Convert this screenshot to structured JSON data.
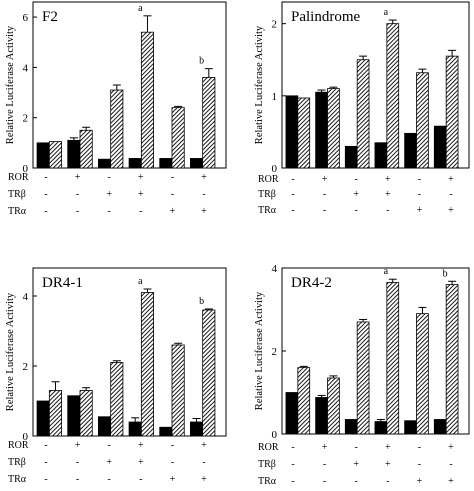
{
  "chart_data": [
    {
      "type": "bar",
      "title": "F2",
      "ylabel": "Relative Luciferase Activity",
      "ylim": [
        0,
        6.6
      ],
      "y_ticks": [
        "0",
        "2",
        "4",
        "6"
      ],
      "y_tick_values": [
        0,
        2,
        4,
        6
      ],
      "series": [
        {
          "fill": "solid",
          "values": [
            1.0,
            1.1,
            0.35,
            0.38,
            0.38,
            0.38
          ],
          "errors": [
            0.0,
            0.1,
            0.0,
            0.0,
            0.0,
            0.0
          ]
        },
        {
          "fill": "hatched",
          "values": [
            1.05,
            1.5,
            3.1,
            5.4,
            2.4,
            3.6
          ],
          "errors": [
            0.0,
            0.12,
            0.2,
            0.65,
            0.05,
            0.35
          ]
        }
      ],
      "annotations": [
        {
          "group": 3,
          "text": "a"
        },
        {
          "group": 5,
          "text": "b"
        }
      ],
      "conditions": [
        {
          "label": "ROR",
          "marks": [
            "-",
            "+",
            "-",
            "+",
            "-",
            "+"
          ]
        },
        {
          "label": "TRβ",
          "marks": [
            "-",
            "-",
            "+",
            "+",
            "-",
            "-"
          ]
        },
        {
          "label": "TRα",
          "marks": [
            "-",
            "-",
            "-",
            "-",
            "+",
            "+"
          ]
        }
      ]
    },
    {
      "type": "bar",
      "title": "Palindrome",
      "ylabel": "Relative Luciferase Activity",
      "ylim": [
        0,
        2.3
      ],
      "y_ticks": [
        "0",
        "1",
        "2"
      ],
      "y_tick_values": [
        0,
        1,
        2
      ],
      "series": [
        {
          "fill": "solid",
          "values": [
            1.0,
            1.05,
            0.3,
            0.35,
            0.48,
            0.58
          ],
          "errors": [
            0.0,
            0.03,
            0.0,
            0.0,
            0.0,
            0.0
          ]
        },
        {
          "fill": "hatched",
          "values": [
            0.97,
            1.1,
            1.5,
            2.0,
            1.32,
            1.55
          ],
          "errors": [
            0.0,
            0.02,
            0.05,
            0.05,
            0.05,
            0.08
          ]
        }
      ],
      "annotations": [
        {
          "group": 3,
          "text": "a"
        }
      ],
      "conditions": [
        {
          "label": "ROR",
          "marks": [
            "-",
            "+",
            "-",
            "+",
            "-",
            "+"
          ]
        },
        {
          "label": "TRβ",
          "marks": [
            "-",
            "-",
            "+",
            "+",
            "-",
            "-"
          ]
        },
        {
          "label": "TRα",
          "marks": [
            "-",
            "-",
            "-",
            "-",
            "+",
            "+"
          ]
        }
      ]
    },
    {
      "type": "bar",
      "title": "DR4-1",
      "ylabel": "Relative Luciferase Activity",
      "ylim": [
        0,
        4.8
      ],
      "y_ticks": [
        "0",
        "2",
        "4"
      ],
      "y_tick_values": [
        0,
        2,
        4
      ],
      "series": [
        {
          "fill": "solid",
          "values": [
            1.0,
            1.15,
            0.55,
            0.4,
            0.25,
            0.4
          ],
          "errors": [
            0.0,
            0.0,
            0.0,
            0.12,
            0.0,
            0.1
          ]
        },
        {
          "fill": "hatched",
          "values": [
            1.3,
            1.3,
            2.1,
            4.1,
            2.6,
            3.6
          ],
          "errors": [
            0.25,
            0.08,
            0.05,
            0.1,
            0.05,
            0.03
          ]
        }
      ],
      "annotations": [
        {
          "group": 3,
          "text": "a"
        },
        {
          "group": 5,
          "text": "b"
        }
      ],
      "conditions": [
        {
          "label": "ROR",
          "marks": [
            "-",
            "+",
            "-",
            "+",
            "-",
            "+"
          ]
        },
        {
          "label": "TRβ",
          "marks": [
            "-",
            "-",
            "+",
            "+",
            "-",
            "-"
          ]
        },
        {
          "label": "TRα",
          "marks": [
            "-",
            "-",
            "-",
            "-",
            "+",
            "+"
          ]
        }
      ]
    },
    {
      "type": "bar",
      "title": "DR4-2",
      "ylabel": "Relative Luciferase Activity",
      "ylim": [
        0,
        4
      ],
      "y_ticks": [
        "0",
        "2",
        "4"
      ],
      "y_tick_values": [
        0,
        2,
        4
      ],
      "series": [
        {
          "fill": "solid",
          "values": [
            1.0,
            0.88,
            0.35,
            0.3,
            0.32,
            0.35
          ],
          "errors": [
            0.0,
            0.05,
            0.0,
            0.05,
            0.0,
            0.0
          ]
        },
        {
          "fill": "hatched",
          "values": [
            1.6,
            1.35,
            2.7,
            3.65,
            2.9,
            3.6
          ],
          "errors": [
            0.03,
            0.05,
            0.06,
            0.08,
            0.15,
            0.08
          ]
        }
      ],
      "annotations": [
        {
          "group": 3,
          "text": "a"
        },
        {
          "group": 5,
          "text": "b"
        }
      ],
      "conditions": [
        {
          "label": "ROR",
          "marks": [
            "-",
            "+",
            "-",
            "+",
            "-",
            "+"
          ]
        },
        {
          "label": "TRβ",
          "marks": [
            "-",
            "-",
            "+",
            "+",
            "-",
            "-"
          ]
        },
        {
          "label": "TRα",
          "marks": [
            "-",
            "-",
            "-",
            "-",
            "+",
            "+"
          ]
        }
      ]
    }
  ]
}
